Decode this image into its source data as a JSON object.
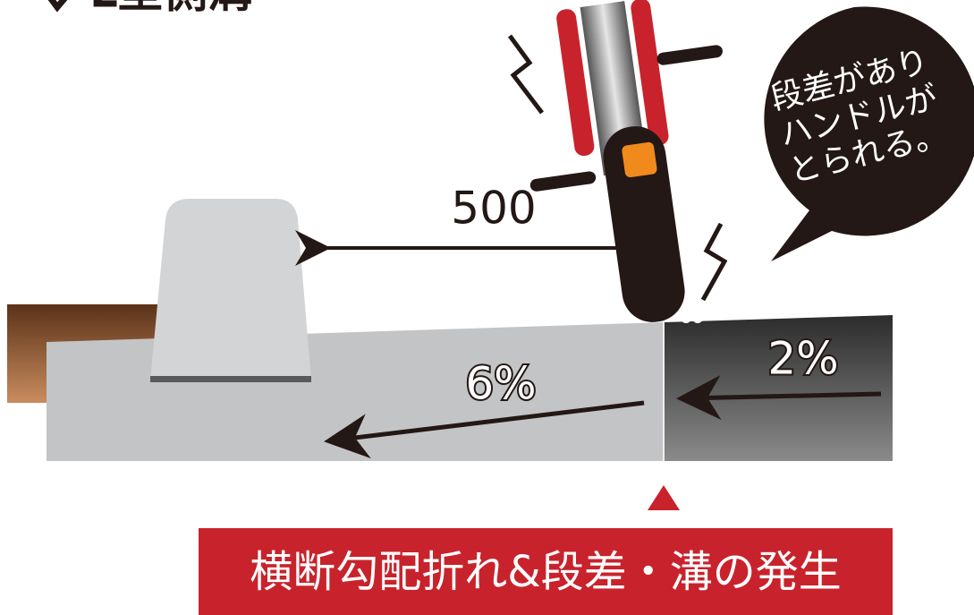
{
  "header": {
    "title": "L型側溝"
  },
  "labels": {
    "distance": "500",
    "slope_left": "6%",
    "slope_right": "2%"
  },
  "bubble": {
    "lines": [
      "段差があり",
      "ハンドルが",
      "とられる。"
    ]
  },
  "banner": {
    "text": "横断勾配折れ&段差・溝の発生"
  }
}
